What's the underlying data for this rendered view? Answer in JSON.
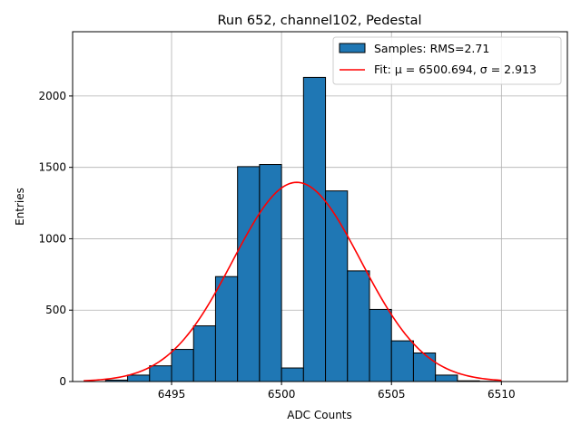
{
  "chart_data": {
    "type": "bar",
    "title": "Run 652, channel102, Pedestal",
    "xlabel": "ADC Counts",
    "ylabel": "Entries",
    "xlim": [
      6490.5,
      6513.0
    ],
    "ylim": [
      0,
      2450
    ],
    "xticks": [
      6495,
      6500,
      6505,
      6510
    ],
    "yticks": [
      0,
      500,
      1000,
      1500,
      2000
    ],
    "grid": true,
    "legend_position": "top-right",
    "histogram": {
      "name": "Samples: RMS=2.71",
      "color": "#1f77b4",
      "edge_color": "#000000",
      "bin_width": 1,
      "bin_left_edges": [
        6492,
        6493,
        6494,
        6495,
        6496,
        6497,
        6498,
        6499,
        6500,
        6501,
        6502,
        6503,
        6504,
        6505,
        6506,
        6507,
        6508,
        6509
      ],
      "counts": [
        10,
        45,
        110,
        225,
        390,
        735,
        1505,
        1520,
        95,
        2130,
        1335,
        775,
        505,
        285,
        200,
        45,
        5,
        2
      ]
    },
    "fit": {
      "name": "Fit: μ = 6500.694, σ = 2.913",
      "color": "#ff0000",
      "amplitude": 1395,
      "mu": 6500.694,
      "sigma": 2.913,
      "x_range": [
        6491,
        6510
      ]
    }
  }
}
